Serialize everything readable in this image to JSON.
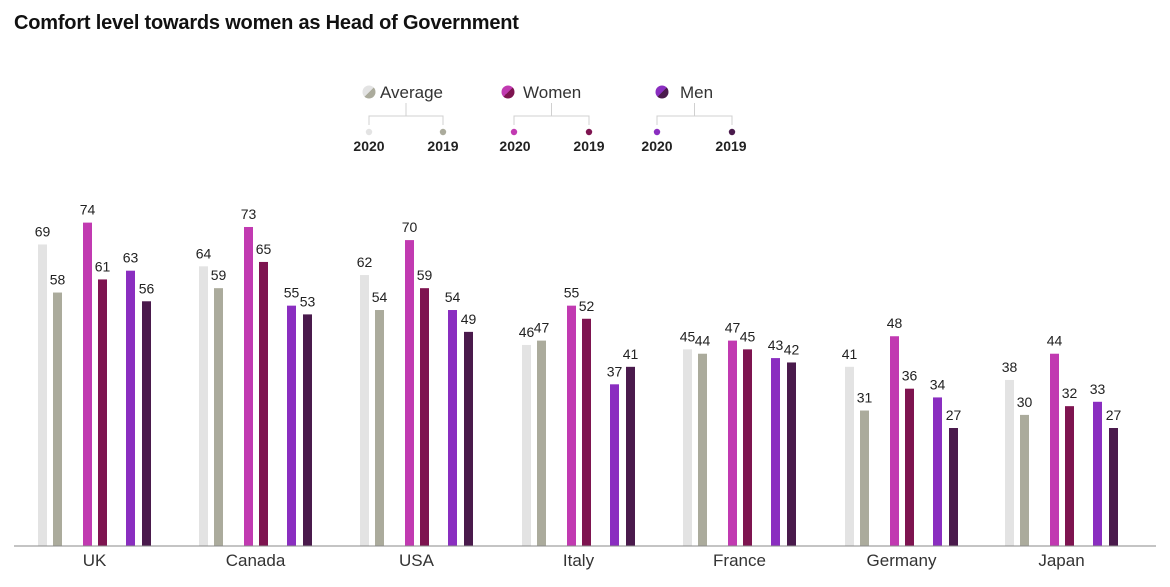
{
  "chart_data": {
    "type": "bar",
    "title": "Comfort level towards women as Head of Government",
    "categories": [
      "UK",
      "Canada",
      "USA",
      "Italy",
      "France",
      "Germany",
      "Japan"
    ],
    "legend_groups": [
      {
        "name": "Average",
        "years": [
          "2020",
          "2019"
        ],
        "colors": [
          "#e3e3e3",
          "#abab9c"
        ]
      },
      {
        "name": "Women",
        "years": [
          "2020",
          "2019"
        ],
        "colors": [
          "#c13ab1",
          "#7e1450"
        ]
      },
      {
        "name": "Men",
        "years": [
          "2020",
          "2019"
        ],
        "colors": [
          "#8a2ec0",
          "#4a1a4c"
        ]
      }
    ],
    "series": [
      {
        "group": "Average",
        "year": "2020",
        "color": "#e3e3e3",
        "values": [
          69,
          64,
          62,
          46,
          45,
          41,
          38
        ]
      },
      {
        "group": "Average",
        "year": "2019",
        "color": "#abab9c",
        "values": [
          58,
          59,
          54,
          47,
          44,
          31,
          30
        ]
      },
      {
        "group": "Women",
        "year": "2020",
        "color": "#c13ab1",
        "values": [
          74,
          73,
          70,
          55,
          47,
          48,
          44
        ]
      },
      {
        "group": "Women",
        "year": "2019",
        "color": "#7e1450",
        "values": [
          61,
          65,
          59,
          52,
          45,
          36,
          32
        ]
      },
      {
        "group": "Men",
        "year": "2020",
        "color": "#8a2ec0",
        "values": [
          63,
          55,
          54,
          37,
          43,
          34,
          33
        ]
      },
      {
        "group": "Men",
        "year": "2019",
        "color": "#4a1a4c",
        "values": [
          56,
          53,
          49,
          41,
          42,
          27,
          27
        ]
      }
    ],
    "ylim": [
      0,
      80
    ],
    "grid": false,
    "legend_position": "top-center"
  }
}
